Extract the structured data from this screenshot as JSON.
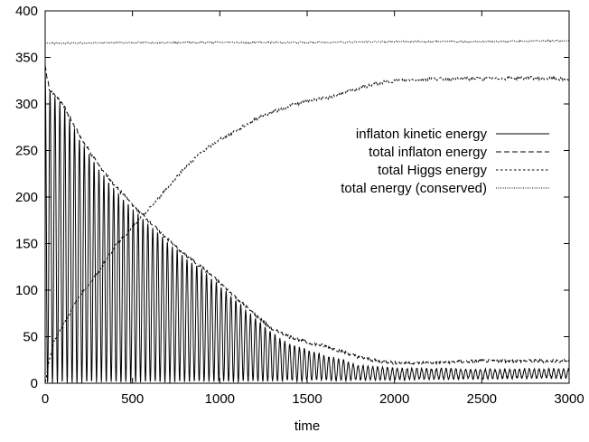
{
  "chart_data": {
    "type": "line",
    "title": "",
    "xlabel": "time",
    "ylabel": "",
    "xlim": [
      0,
      3000
    ],
    "ylim": [
      0,
      400
    ],
    "x_ticks": [
      "0",
      "500",
      "1000",
      "1500",
      "2000",
      "2500",
      "3000"
    ],
    "y_ticks": [
      "0",
      "50",
      "100",
      "150",
      "200",
      "250",
      "300",
      "350",
      "400"
    ],
    "grid": false,
    "legend_position": "right",
    "series": [
      {
        "name": "inflaton kinetic energy",
        "style": "solid",
        "color": "#000000",
        "oscillation_period": 28,
        "envelope_min": [
          [
            0,
            0
          ],
          [
            3000,
            6
          ]
        ],
        "envelope_max": [
          [
            0,
            335
          ],
          [
            25,
            315
          ],
          [
            100,
            300
          ],
          [
            200,
            262
          ],
          [
            300,
            232
          ],
          [
            400,
            208
          ],
          [
            500,
            188
          ],
          [
            600,
            170
          ],
          [
            700,
            153
          ],
          [
            800,
            135
          ],
          [
            900,
            122
          ],
          [
            1000,
            105
          ],
          [
            1100,
            88
          ],
          [
            1200,
            70
          ],
          [
            1300,
            54
          ],
          [
            1400,
            42
          ],
          [
            1500,
            36
          ],
          [
            1600,
            30
          ],
          [
            1700,
            25
          ],
          [
            1800,
            19
          ],
          [
            2000,
            16
          ],
          [
            2500,
            15
          ],
          [
            3000,
            15
          ]
        ]
      },
      {
        "name": "total inflaton energy",
        "style": "dashed",
        "color": "#000000",
        "points": [
          [
            0,
            340
          ],
          [
            25,
            315
          ],
          [
            100,
            300
          ],
          [
            200,
            265
          ],
          [
            300,
            236
          ],
          [
            400,
            212
          ],
          [
            500,
            192
          ],
          [
            600,
            173
          ],
          [
            700,
            155
          ],
          [
            800,
            138
          ],
          [
            900,
            124
          ],
          [
            1000,
            108
          ],
          [
            1100,
            91
          ],
          [
            1200,
            74
          ],
          [
            1300,
            58
          ],
          [
            1400,
            50
          ],
          [
            1500,
            44
          ],
          [
            1600,
            40
          ],
          [
            1700,
            34
          ],
          [
            1800,
            28
          ],
          [
            1900,
            24
          ],
          [
            2000,
            22
          ],
          [
            2200,
            22
          ],
          [
            2500,
            24
          ],
          [
            2800,
            24
          ],
          [
            3000,
            24
          ]
        ]
      },
      {
        "name": "total Higgs energy",
        "style": "dotted",
        "color": "#000000",
        "points": [
          [
            0,
            0
          ],
          [
            20,
            22
          ],
          [
            50,
            45
          ],
          [
            100,
            62
          ],
          [
            200,
            95
          ],
          [
            300,
            118
          ],
          [
            400,
            147
          ],
          [
            500,
            168
          ],
          [
            600,
            188
          ],
          [
            700,
            210
          ],
          [
            800,
            232
          ],
          [
            900,
            249
          ],
          [
            1000,
            262
          ],
          [
            1100,
            272
          ],
          [
            1200,
            283
          ],
          [
            1300,
            291
          ],
          [
            1400,
            298
          ],
          [
            1500,
            303
          ],
          [
            1600,
            306
          ],
          [
            1700,
            311
          ],
          [
            1800,
            317
          ],
          [
            1900,
            322
          ],
          [
            2000,
            325
          ],
          [
            2200,
            327
          ],
          [
            2500,
            327
          ],
          [
            2800,
            328
          ],
          [
            3000,
            326
          ]
        ]
      },
      {
        "name": "total energy (conserved)",
        "style": "dense-dotted",
        "color": "#000000",
        "points": [
          [
            0,
            365
          ],
          [
            500,
            366
          ],
          [
            1000,
            366
          ],
          [
            1500,
            366
          ],
          [
            2000,
            367
          ],
          [
            2500,
            367
          ],
          [
            3000,
            368
          ]
        ]
      }
    ]
  }
}
